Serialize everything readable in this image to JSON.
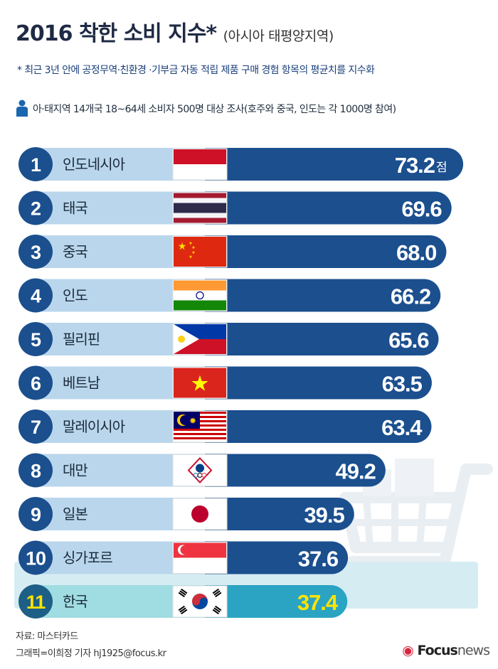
{
  "header": {
    "title": "2016 착한 소비 지수*",
    "subtitle": "(아시아 태평양지역)",
    "note": "* 최근 3년 안에 공정무역·친환경 ·기부금 자동 적립 제품 구매 경험 항목의 평균치를 지수화",
    "survey": "아·태지역 14개국 18~64세 소비자 500명 대상 조사(호주와 중국, 인도는 각 1000명 참여)"
  },
  "chart_data": {
    "type": "bar",
    "unit": "점",
    "categories": [
      "인도네시아",
      "태국",
      "중국",
      "인도",
      "필리핀",
      "베트남",
      "말레이시아",
      "대만",
      "일본",
      "싱가포르",
      "한국"
    ],
    "ranks": [
      "1",
      "2",
      "3",
      "4",
      "5",
      "6",
      "7",
      "8",
      "9",
      "10",
      "11"
    ],
    "values": [
      73.2,
      69.6,
      68.0,
      66.2,
      65.6,
      63.5,
      63.4,
      49.2,
      39.5,
      37.6,
      37.4
    ],
    "value_labels": [
      "73.2",
      "69.6",
      "68.0",
      "66.2",
      "65.6",
      "63.5",
      "63.4",
      "49.2",
      "39.5",
      "37.6",
      "37.4"
    ],
    "highlight": "한국",
    "colors": {
      "bar": "#1b4f8e",
      "label_band": "#b9d6ec",
      "rank_circle": "#1b4f8e",
      "highlight_bar": "#2aa4c2",
      "highlight_band": "#9fdde2",
      "highlight_rank": "#1d5f86",
      "highlight_text": "#ffe400"
    }
  },
  "footer": {
    "source": "자료: 마스터카드",
    "credit": "그래픽=이희정 기자 hj1925@focus.kr",
    "logo_focus": "Focus",
    "logo_news": "news"
  }
}
